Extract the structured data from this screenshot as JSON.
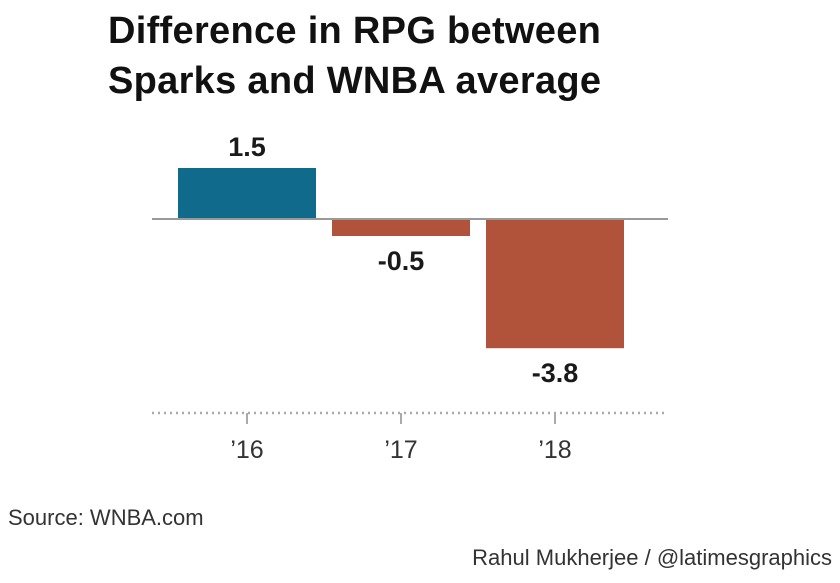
{
  "title_line1": "Difference in RPG between",
  "title_line2": "Sparks and WNBA average",
  "source": "Source: WNBA.com",
  "credit": "Rahul Mukherjee / @latimesgraphics",
  "colors": {
    "positive": "#0f6a8b",
    "negative": "#b0533a",
    "baseline": "#999999",
    "axis": "#aaaaaa"
  },
  "chart_data": {
    "type": "bar",
    "title": "Difference in RPG between Sparks and WNBA average",
    "categories": [
      "’16",
      "’17",
      "’18"
    ],
    "values": [
      1.5,
      -0.5,
      -3.8
    ],
    "value_labels": [
      "1.5",
      "-0.5",
      "-3.8"
    ],
    "xlabel": "",
    "ylabel": "",
    "ylim": [
      -3.8,
      1.5
    ],
    "grid": false,
    "legend": "none"
  }
}
